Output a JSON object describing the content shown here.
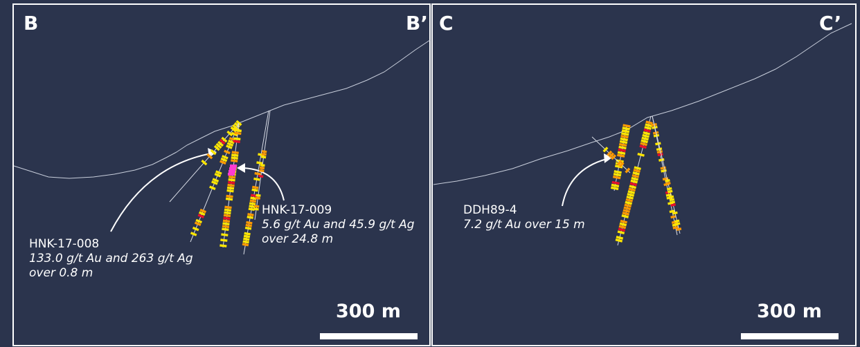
{
  "panels": [
    {
      "left_label": "B",
      "right_label": "B’",
      "scale_label": "300 m",
      "annotations": [
        {
          "hole": "HNK-17-008",
          "line1": "133.0 g/t Au and 263 g/t Ag",
          "line2": "over 0.8 m"
        },
        {
          "hole": "HNK-17-009",
          "line1": "5.6 g/t Au and 45.9 g/t Ag",
          "line2": "over 24.8 m"
        }
      ]
    },
    {
      "left_label": "C",
      "right_label": "C’",
      "scale_label": "300 m",
      "annotations": [
        {
          "hole": "DDH89-4",
          "line1": "7.2 g/t Au over 15 m"
        }
      ]
    }
  ],
  "colors": {
    "background": "#2b344d",
    "frame": "#ffffff",
    "grade_low": "#ffe600",
    "grade_mid": "#ff9a00",
    "grade_high": "#e8102a",
    "grade_very_high": "#ff3bd0"
  }
}
